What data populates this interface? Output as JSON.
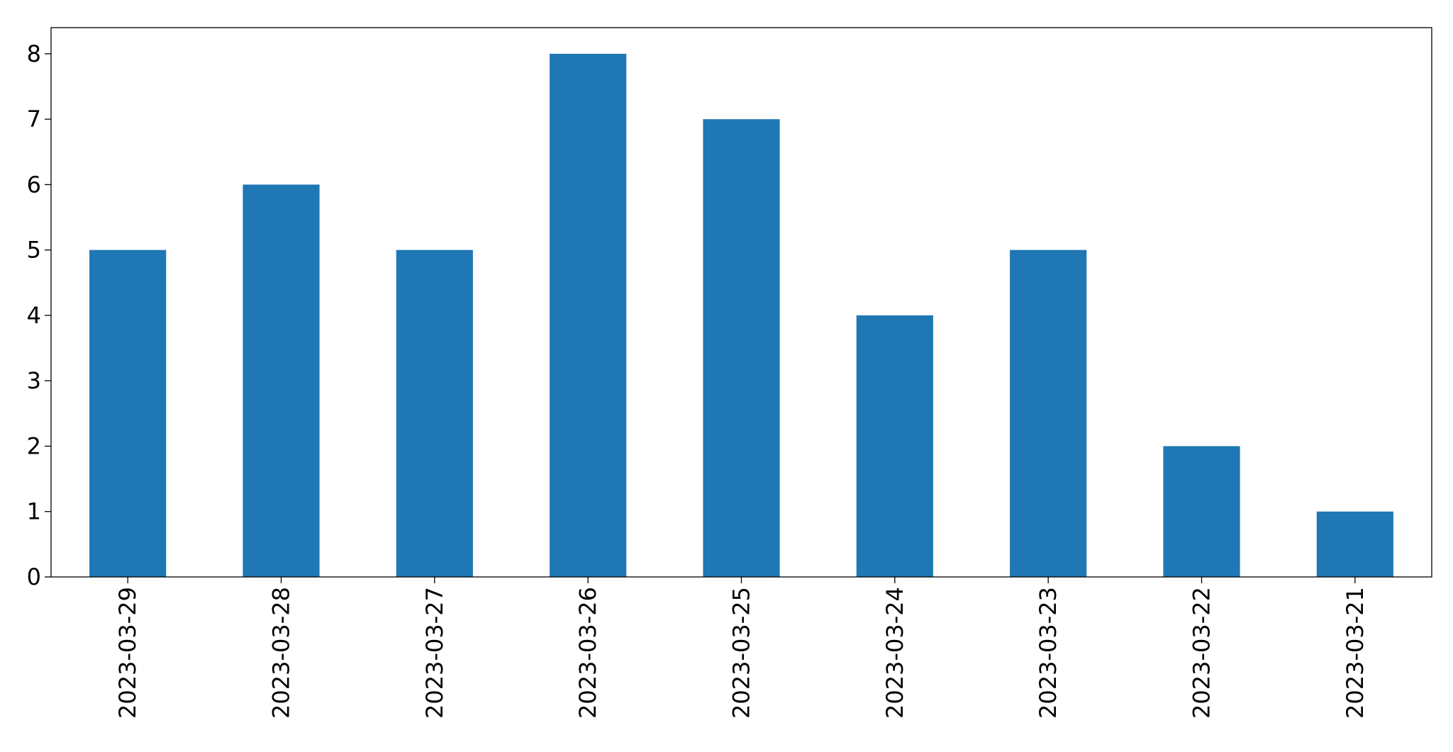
{
  "chart_data": {
    "type": "bar",
    "categories": [
      "2023-03-29",
      "2023-03-28",
      "2023-03-27",
      "2023-03-26",
      "2023-03-25",
      "2023-03-24",
      "2023-03-23",
      "2023-03-22",
      "2023-03-21"
    ],
    "values": [
      5,
      6,
      5,
      8,
      7,
      4,
      5,
      2,
      1
    ],
    "color": "#1f77b4",
    "ylim": [
      0,
      8.4
    ],
    "yticks": [
      0,
      1,
      2,
      3,
      4,
      5,
      6,
      7,
      8
    ],
    "grid": false
  }
}
